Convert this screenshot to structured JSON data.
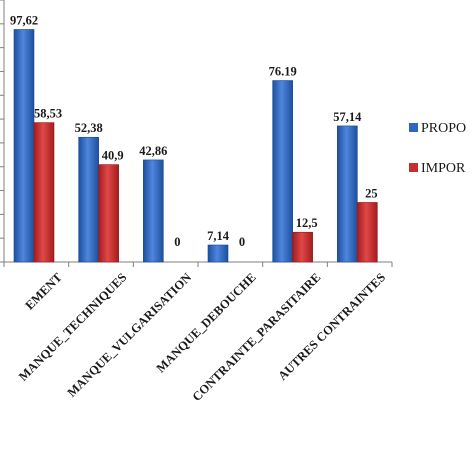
{
  "chart_data": {
    "type": "bar",
    "title": "",
    "xlabel": "",
    "ylabel": "",
    "ylim": [
      0,
      110
    ],
    "grid": false,
    "legend": "right",
    "categories": [
      "EMENT",
      "MANQUE_TECHNIQUES",
      "MANQUE_VULGARISATION",
      "MANQUE_DEBOUCHE",
      "CONTRAINTE_PARASITAIRE",
      "AUTRES CONTRAINTES"
    ],
    "series": [
      {
        "name": "PROPO",
        "color": "#2f66c2",
        "values": [
          97.62,
          52.38,
          42.86,
          7.14,
          76.19,
          57.14
        ],
        "labels": [
          "97,62",
          "52,38",
          "42,86",
          "7,14",
          "76.19",
          "57,14"
        ]
      },
      {
        "name": "IMPOR",
        "color": "#c62d2d",
        "values": [
          58.53,
          40.9,
          0,
          0,
          12.5,
          25
        ],
        "labels": [
          "58,53",
          "40,9",
          "0",
          "0",
          "12,5",
          "25"
        ]
      }
    ]
  }
}
